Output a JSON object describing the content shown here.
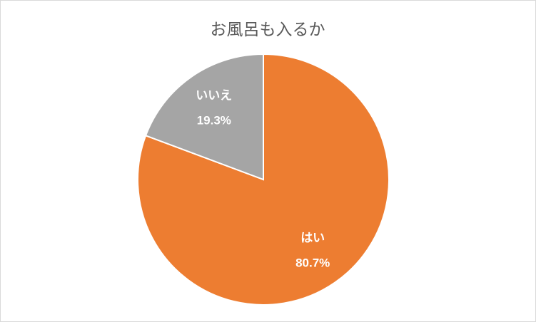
{
  "chart_data": {
    "type": "pie",
    "title": "お風呂も入るか",
    "categories": [
      "はい",
      "いいえ"
    ],
    "values": [
      80.7,
      19.3
    ],
    "value_labels": [
      "80.7%",
      "19.3%"
    ],
    "colors": [
      "#ED7D31",
      "#A5A5A5"
    ]
  }
}
